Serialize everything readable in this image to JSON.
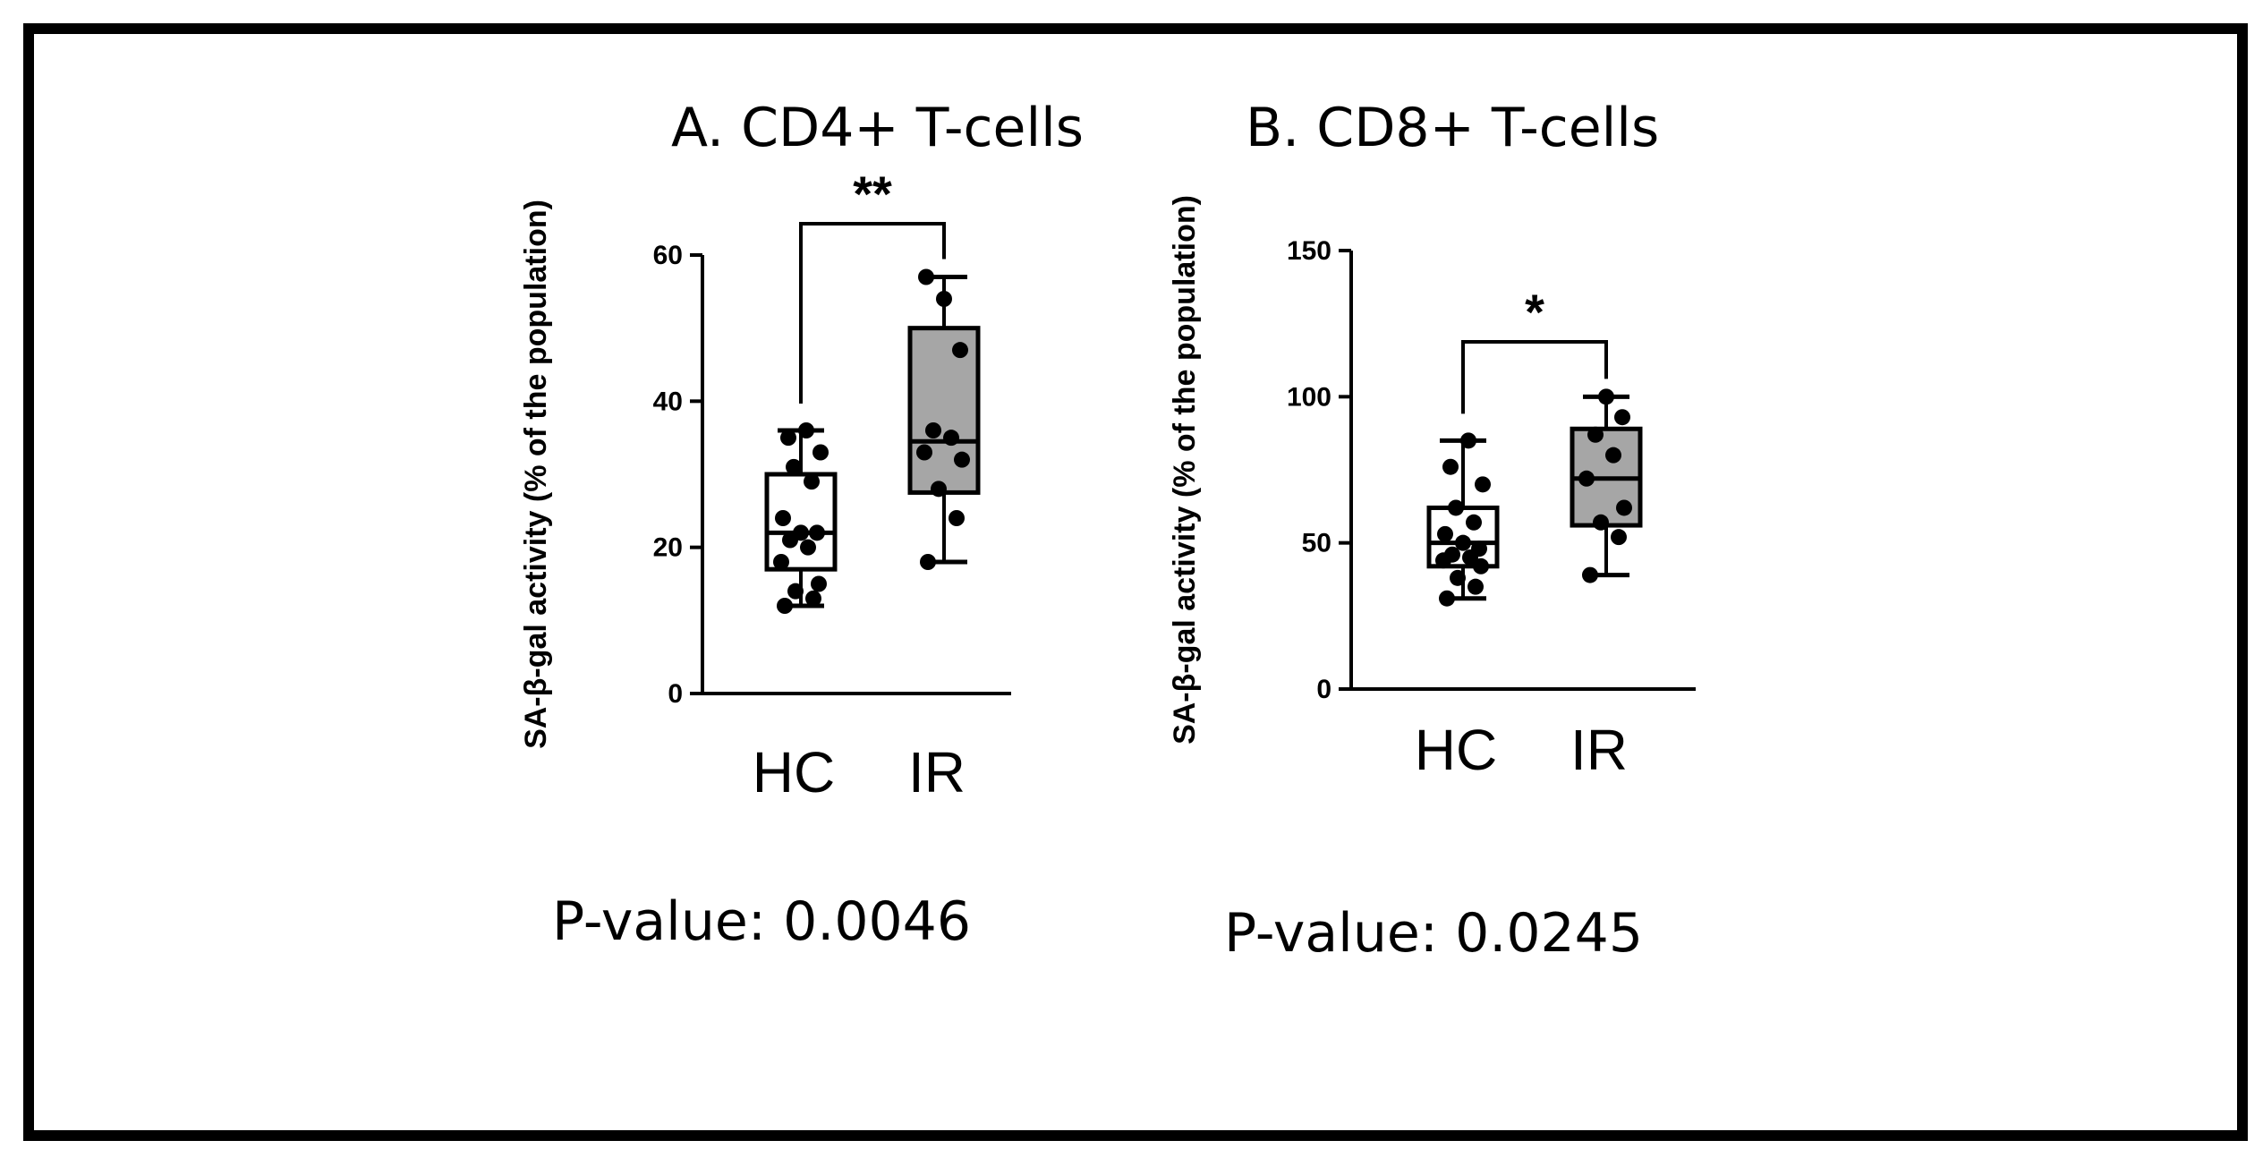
{
  "chart_data": [
    {
      "id": "cd4",
      "type": "box",
      "title": "A. CD4+ T-cells",
      "ylabel": "SA-β-gal activity (% of the population)",
      "xlabel": "",
      "ylim": [
        0,
        60
      ],
      "yticks": [
        0,
        20,
        40,
        60
      ],
      "categories": [
        "HC",
        "IR"
      ],
      "fills": [
        "#ffffff",
        "#a6a6a6"
      ],
      "boxes": [
        {
          "category": "HC",
          "min": 12,
          "q1": 17,
          "median": 22,
          "q3": 30,
          "max": 36,
          "points": [
            12,
            13,
            14,
            15,
            18,
            20,
            21,
            22,
            22,
            24,
            29,
            31,
            33,
            35,
            36
          ]
        },
        {
          "category": "IR",
          "min": 18,
          "q1": 27.5,
          "median": 34.5,
          "q3": 50,
          "max": 57,
          "points": [
            18,
            24,
            28,
            32,
            33,
            35,
            36,
            47,
            54,
            57
          ]
        }
      ],
      "significance": "**",
      "p_value_text": "P-value: 0.0046"
    },
    {
      "id": "cd8",
      "type": "box",
      "title": "B. CD8+ T-cells",
      "ylabel": "SA-β-gal activity (% of the population)",
      "xlabel": "",
      "ylim": [
        0,
        150
      ],
      "yticks": [
        0,
        50,
        100,
        150
      ],
      "categories": [
        "HC",
        "IR"
      ],
      "fills": [
        "#ffffff",
        "#a6a6a6"
      ],
      "boxes": [
        {
          "category": "HC",
          "min": 31,
          "q1": 42,
          "median": 50,
          "q3": 62,
          "max": 85,
          "points": [
            31,
            35,
            38,
            42,
            44,
            45,
            46,
            48,
            50,
            53,
            57,
            62,
            70,
            76,
            85
          ]
        },
        {
          "category": "IR",
          "min": 39,
          "q1": 56,
          "median": 72,
          "q3": 89,
          "max": 100,
          "points": [
            39,
            52,
            57,
            62,
            72,
            80,
            87,
            93,
            100
          ]
        }
      ],
      "significance": "*",
      "p_value_text": "P-value: 0.0245"
    }
  ]
}
